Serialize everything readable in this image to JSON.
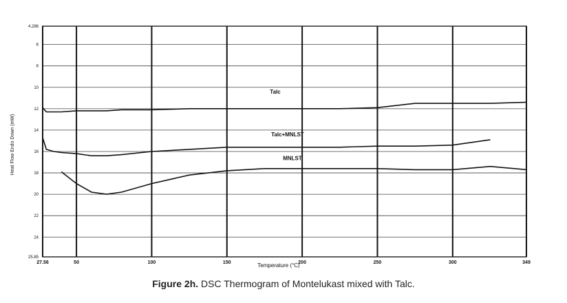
{
  "chart_data": {
    "type": "line",
    "ylabel": "Heat Flow Endo Down (mW)",
    "xlabel": "Temperature (°C)",
    "x": [
      27.56,
      30,
      35,
      40,
      50,
      60,
      70,
      80,
      100,
      125,
      150,
      175,
      200,
      225,
      250,
      275,
      300,
      325,
      349
    ],
    "series": [
      {
        "name": "Talc",
        "color": "#111111",
        "values": [
          11.9,
          12.3,
          12.3,
          12.3,
          12.2,
          12.2,
          12.2,
          12.1,
          12.1,
          12.0,
          12.0,
          12.0,
          12.0,
          12.0,
          11.9,
          11.5,
          11.5,
          11.5,
          11.4
        ]
      },
      {
        "name": "Talc+MNLST",
        "color": "#111111",
        "values": [
          14.7,
          15.8,
          16.0,
          16.1,
          16.2,
          16.4,
          16.4,
          16.3,
          16.0,
          15.8,
          15.6,
          15.6,
          15.6,
          15.6,
          15.5,
          15.5,
          15.4,
          14.9,
          null
        ]
      },
      {
        "name": "MNLST",
        "color": "#111111",
        "values": [
          null,
          null,
          null,
          17.9,
          19.0,
          19.8,
          20.0,
          19.8,
          19.0,
          18.2,
          17.8,
          17.6,
          17.6,
          17.6,
          17.6,
          17.7,
          17.7,
          17.4,
          17.7
        ]
      }
    ],
    "xlim": [
      27.56,
      349
    ],
    "xticks": [
      27.56,
      50,
      100,
      150,
      200,
      250,
      300,
      349
    ],
    "ylim": [
      4.286,
      25.85
    ],
    "yticks": [
      4.286,
      6,
      8,
      10,
      12,
      14,
      16,
      18,
      20,
      22,
      24,
      25.85
    ],
    "y_inverted": true,
    "grid": true
  },
  "caption": {
    "label": "Figure 2h.",
    "text": " DSC Thermogram of Montelukast mixed with Talc."
  }
}
